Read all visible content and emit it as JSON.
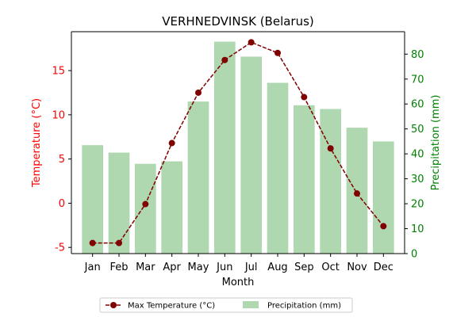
{
  "chart_data": {
    "type": "bar+line",
    "title": "VERHNEDVINSK (Belarus)",
    "xlabel": "Month",
    "categories": [
      "Jan",
      "Feb",
      "Mar",
      "Apr",
      "May",
      "Jun",
      "Jul",
      "Aug",
      "Sep",
      "Oct",
      "Nov",
      "Dec"
    ],
    "left_axis": {
      "label": "Temperature (°C)",
      "color": "#ff0000",
      "ylim": [
        -5.7,
        19.4
      ],
      "ticks": [
        -5,
        0,
        5,
        10,
        15
      ]
    },
    "right_axis": {
      "label": "Precipitation (mm)",
      "color": "#008000",
      "ylim": [
        0,
        89
      ],
      "ticks": [
        0,
        10,
        20,
        30,
        40,
        50,
        60,
        70,
        80
      ]
    },
    "series": [
      {
        "name": "Max Temperature (°C)",
        "type": "line",
        "axis": "left",
        "color": "#800000",
        "values": [
          -4.5,
          -4.5,
          -0.1,
          6.8,
          12.5,
          16.2,
          18.2,
          17.0,
          12.0,
          6.2,
          1.1,
          -2.6
        ]
      },
      {
        "name": "Precipitation (mm)",
        "type": "bar",
        "axis": "right",
        "color": "#b0d8b0",
        "values": [
          43.5,
          40.5,
          36,
          37,
          61,
          85,
          79,
          68.5,
          59.5,
          58,
          50.5,
          45
        ]
      }
    ],
    "grid": false,
    "legend": "bottom-center"
  }
}
